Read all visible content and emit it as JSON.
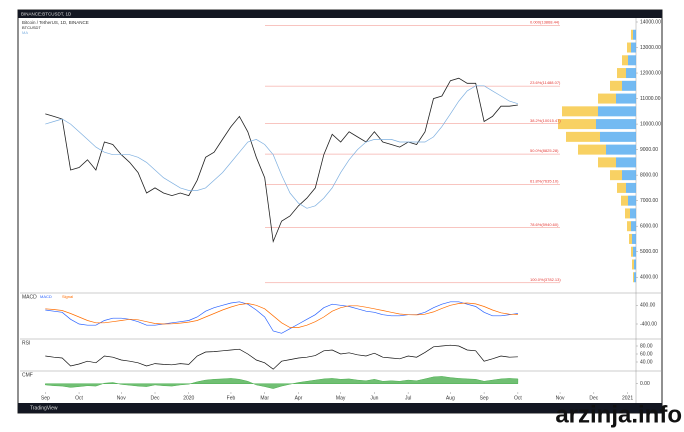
{
  "header": {
    "symbol": "BINANCE:BTCUSDT, 1D",
    "legend": "Bitcoin / TetherUS, 1D, BINANCE"
  },
  "chart_data": [
    {
      "type": "line",
      "series": [
        {
          "name": "BTCUSDT",
          "color": "#222222",
          "values": [
            10400,
            10300,
            10200,
            8200,
            8300,
            8600,
            8200,
            9300,
            9200,
            8800,
            8500,
            8100,
            7300,
            7500,
            7300,
            7200,
            7300,
            7200,
            7800,
            8700,
            8900,
            9400,
            9900,
            10300,
            9700,
            8700,
            7900,
            5400,
            6200,
            6400,
            6800,
            7100,
            7500,
            8800,
            9600,
            9300,
            9700,
            9500,
            9300,
            9700,
            9300,
            9200,
            9100,
            9300,
            9200,
            9700,
            11000,
            11100,
            11700,
            11800,
            11600,
            11600,
            10100,
            10300,
            10700,
            10700,
            10750
          ]
        },
        {
          "name": "MA",
          "color": "#7fb0e0",
          "values": [
            10000,
            10100,
            10200,
            10000,
            9700,
            9400,
            9100,
            8900,
            8800,
            8800,
            8800,
            8700,
            8500,
            8200,
            7900,
            7700,
            7500,
            7400,
            7400,
            7500,
            7800,
            8100,
            8500,
            8900,
            9300,
            9400,
            9200,
            8800,
            8000,
            7300,
            6900,
            6700,
            6800,
            7100,
            7500,
            8100,
            8600,
            9000,
            9300,
            9400,
            9400,
            9400,
            9300,
            9300,
            9300,
            9300,
            9500,
            9900,
            10400,
            10900,
            11300,
            11500,
            11500,
            11300,
            11100,
            10900,
            10800
          ]
        }
      ],
      "xlim": [
        -3,
        70
      ],
      "xticks": [
        {
          "value": 0,
          "label": "Sep"
        },
        {
          "value": 4,
          "label": "Oct"
        },
        {
          "value": 9,
          "label": "Nov"
        },
        {
          "value": 13,
          "label": "Dec"
        },
        {
          "value": 17,
          "label": "2020"
        },
        {
          "value": 22,
          "label": "Feb"
        },
        {
          "value": 26,
          "label": "Mar"
        },
        {
          "value": 30,
          "label": "Apr"
        },
        {
          "value": 35,
          "label": "May"
        },
        {
          "value": 39,
          "label": "Jun"
        },
        {
          "value": 43,
          "label": "Jul"
        },
        {
          "value": 48,
          "label": "Aug"
        },
        {
          "value": 52,
          "label": "Sep"
        },
        {
          "value": 56,
          "label": "Oct"
        },
        {
          "value": 61,
          "label": "Nov"
        },
        {
          "value": 65,
          "label": "Dec"
        },
        {
          "value": 69,
          "label": "2021"
        }
      ],
      "ylim": [
        3500,
        14000
      ],
      "yticks": [
        {
          "value": 4000,
          "label": "4000.00"
        },
        {
          "value": 5000,
          "label": "5000.00"
        },
        {
          "value": 6000,
          "label": "6000.00"
        },
        {
          "value": 7000,
          "label": "7000.00"
        },
        {
          "value": 8000,
          "label": "8000.00"
        },
        {
          "value": 9000,
          "label": "9000.00"
        },
        {
          "value": 10000,
          "label": "10000.00"
        },
        {
          "value": 11000,
          "label": "11000.00"
        },
        {
          "value": 12000,
          "label": "12000.00"
        },
        {
          "value": 13000,
          "label": "13000.00"
        },
        {
          "value": 14000,
          "label": "14000.00"
        }
      ],
      "fib_levels": [
        {
          "value": 13868.44,
          "label": "0.000(13868.44)"
        },
        {
          "value": 11488.07,
          "label": "23.6%(11488.07)"
        },
        {
          "value": 10015.47,
          "label": "38.2%(10015.47)"
        },
        {
          "value": 8825.28,
          "label": "50.0%(8825.28)"
        },
        {
          "value": 7635.1,
          "label": "61.8%(7635.10)"
        },
        {
          "value": 5940.6,
          "label": "78.6%(5940.60)"
        },
        {
          "value": 3782.13,
          "label": "100.0%(3782.13)"
        }
      ],
      "volume_profile": {
        "prices": [
          4000,
          4500,
          5000,
          5500,
          6000,
          6500,
          7000,
          7500,
          8000,
          8500,
          9000,
          9500,
          10000,
          10500,
          11000,
          11500,
          12000,
          12500,
          13000,
          13500
        ],
        "up": [
          2,
          2,
          3,
          4,
          5,
          6,
          8,
          10,
          14,
          20,
          30,
          36,
          40,
          38,
          20,
          14,
          10,
          8,
          5,
          3
        ],
        "down": [
          1,
          2,
          2,
          3,
          4,
          5,
          7,
          9,
          12,
          18,
          28,
          34,
          38,
          36,
          18,
          12,
          9,
          6,
          4,
          2
        ],
        "up_color": "#5aaef0",
        "down_color": "#f7c948"
      }
    },
    {
      "type": "line",
      "title": "MACD",
      "series": [
        {
          "name": "MACD",
          "color": "#2962ff",
          "values": [
            200,
            150,
            100,
            -200,
            -400,
            -450,
            -450,
            -250,
            -150,
            -150,
            -200,
            -300,
            -450,
            -450,
            -400,
            -350,
            -300,
            -250,
            -100,
            150,
            300,
            400,
            500,
            550,
            450,
            200,
            -100,
            -700,
            -800,
            -600,
            -400,
            -200,
            0,
            300,
            450,
            400,
            350,
            250,
            150,
            100,
            0,
            -50,
            -50,
            0,
            0,
            100,
            300,
            450,
            550,
            550,
            450,
            350,
            100,
            -50,
            -50,
            0,
            50
          ]
        },
        {
          "name": "Signal",
          "color": "#ff6d00",
          "values": [
            250,
            220,
            180,
            50,
            -100,
            -250,
            -350,
            -350,
            -300,
            -250,
            -200,
            -220,
            -300,
            -380,
            -400,
            -390,
            -360,
            -320,
            -250,
            -100,
            50,
            200,
            330,
            430,
            480,
            400,
            250,
            -50,
            -350,
            -550,
            -550,
            -450,
            -300,
            -100,
            150,
            300,
            380,
            380,
            320,
            250,
            180,
            100,
            30,
            0,
            -10,
            20,
            120,
            270,
            400,
            480,
            500,
            460,
            350,
            200,
            80,
            20,
            10
          ]
        }
      ],
      "ylim": [
        -1000,
        800
      ],
      "yticks": [
        {
          "value": 400,
          "label": "400.00"
        },
        {
          "value": -400,
          "label": "-400.00"
        }
      ]
    },
    {
      "type": "line",
      "title": "RSI",
      "series": [
        {
          "color": "#111111",
          "values": [
            55,
            52,
            50,
            30,
            35,
            42,
            38,
            55,
            52,
            45,
            42,
            38,
            30,
            36,
            34,
            33,
            36,
            34,
            55,
            65,
            66,
            68,
            70,
            72,
            60,
            45,
            38,
            22,
            42,
            46,
            50,
            52,
            56,
            68,
            70,
            60,
            63,
            58,
            55,
            62,
            52,
            50,
            48,
            55,
            52,
            64,
            78,
            80,
            82,
            80,
            70,
            68,
            42,
            48,
            55,
            52,
            53
          ]
        }
      ],
      "ylim": [
        20,
        90
      ],
      "yticks": [
        {
          "value": 80,
          "label": "80.00"
        },
        {
          "value": 60,
          "label": "60.00"
        },
        {
          "value": 40,
          "label": "40.00"
        }
      ]
    },
    {
      "type": "area",
      "title": "CMF",
      "series": [
        {
          "color": "#4caf50",
          "values": [
            -0.05,
            -0.08,
            -0.1,
            -0.15,
            -0.12,
            -0.08,
            -0.1,
            0.02,
            0.05,
            -0.03,
            -0.06,
            -0.1,
            -0.12,
            -0.05,
            -0.08,
            -0.1,
            -0.05,
            -0.02,
            0.08,
            0.15,
            0.18,
            0.2,
            0.22,
            0.18,
            0.1,
            -0.05,
            -0.12,
            -0.2,
            -0.1,
            -0.02,
            0.05,
            0.1,
            0.15,
            0.2,
            0.22,
            0.18,
            0.2,
            0.15,
            0.12,
            0.18,
            0.1,
            0.12,
            0.1,
            0.15,
            0.12,
            0.2,
            0.28,
            0.3,
            0.25,
            0.22,
            0.2,
            0.18,
            0.1,
            0.15,
            0.2,
            0.22,
            0.2
          ]
        }
      ],
      "ylim": [
        -0.3,
        0.4
      ],
      "yticks": [
        {
          "value": 0,
          "label": "0.00"
        }
      ]
    }
  ],
  "footer": {
    "brand": "TradingView"
  },
  "watermark": "arzinja.info"
}
